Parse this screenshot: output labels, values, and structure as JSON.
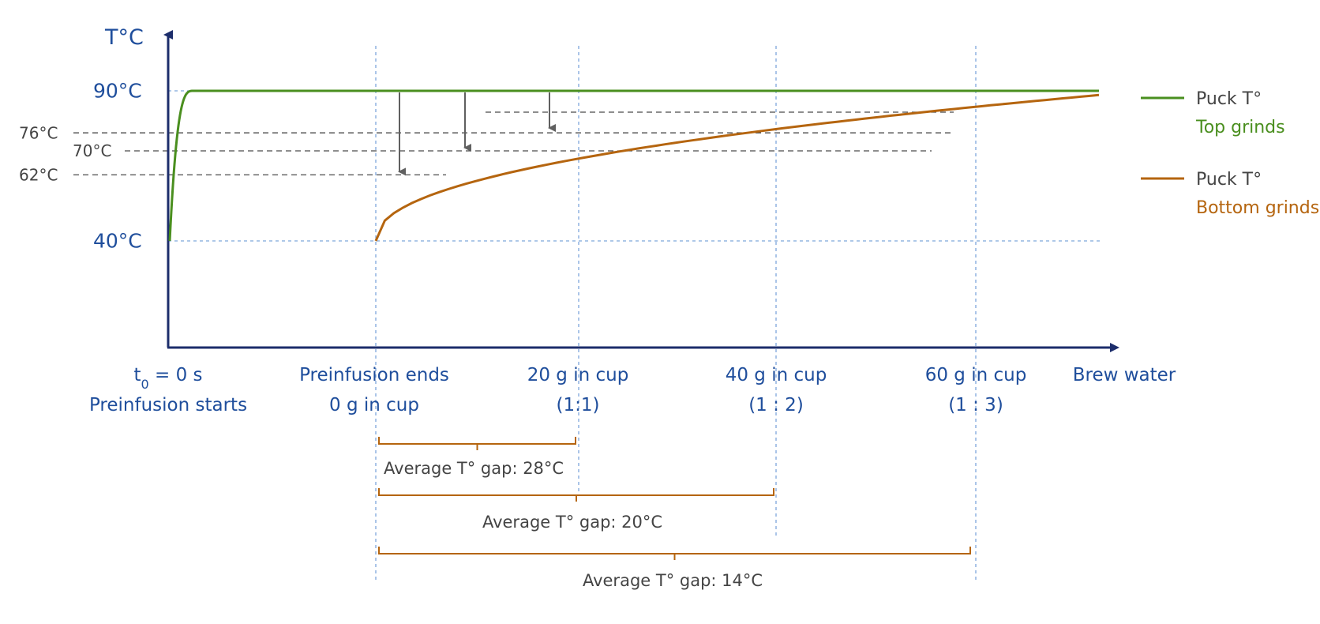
{
  "chart_data": {
    "type": "line",
    "title": "",
    "ylabel": "T°C",
    "xlabel": "Brew water",
    "y_ticks": [
      {
        "value": 90,
        "label": "90°C",
        "style": "major"
      },
      {
        "value": 76,
        "label": "76°C",
        "style": "minor"
      },
      {
        "value": 70,
        "label": "70°C",
        "style": "minor"
      },
      {
        "value": 62,
        "label": "62°C",
        "style": "minor"
      },
      {
        "value": 40,
        "label": "40°C",
        "style": "major"
      }
    ],
    "x_ticks": [
      {
        "line1": "t",
        "sub": "0",
        "line1_rest": " = 0 s",
        "line2": "Preinfusion starts"
      },
      {
        "line1": "Preinfusion ends",
        "line2": "0 g in cup"
      },
      {
        "line1": "20 g in cup",
        "line2": "(1:1)"
      },
      {
        "line1": "40 g in cup",
        "line2": "(1 : 2)"
      },
      {
        "line1": "60 g in cup",
        "line2": "(1 : 3)"
      }
    ],
    "series": [
      {
        "name": "Puck T°",
        "subname": "Top grinds",
        "color": "#4a8f1f",
        "description": "rises quickly from 40°C to 90°C at start of preinfusion, then flat at 90°C"
      },
      {
        "name": "Puck T°",
        "subname": "Bottom grinds",
        "color": "#b5650f",
        "description": "starts at 40°C when preinfusion ends and rises gradually toward ~89°C"
      }
    ],
    "arrows_gap": [
      {
        "from": 90,
        "to": 62
      },
      {
        "from": 90,
        "to": 70
      },
      {
        "from": 90,
        "to": 76
      }
    ],
    "average_gaps": [
      {
        "label": "Average T° gap: 28°C",
        "range": [
          "Preinfusion ends",
          "20 g in cup"
        ]
      },
      {
        "label": "Average T° gap: 20°C",
        "range": [
          "Preinfusion ends",
          "40 g in cup"
        ]
      },
      {
        "label": "Average T° gap: 14°C",
        "range": [
          "Preinfusion ends",
          "60 g in cup"
        ]
      }
    ],
    "legend_position": "right"
  },
  "colors": {
    "axis": "#1c2d6b",
    "label_blue": "#1f4e9c",
    "top": "#4a8f1f",
    "bottom": "#b5650f",
    "grid_blue": "#7ea6db",
    "dash_grey": "#4a4a4a",
    "arrow": "#606060"
  }
}
